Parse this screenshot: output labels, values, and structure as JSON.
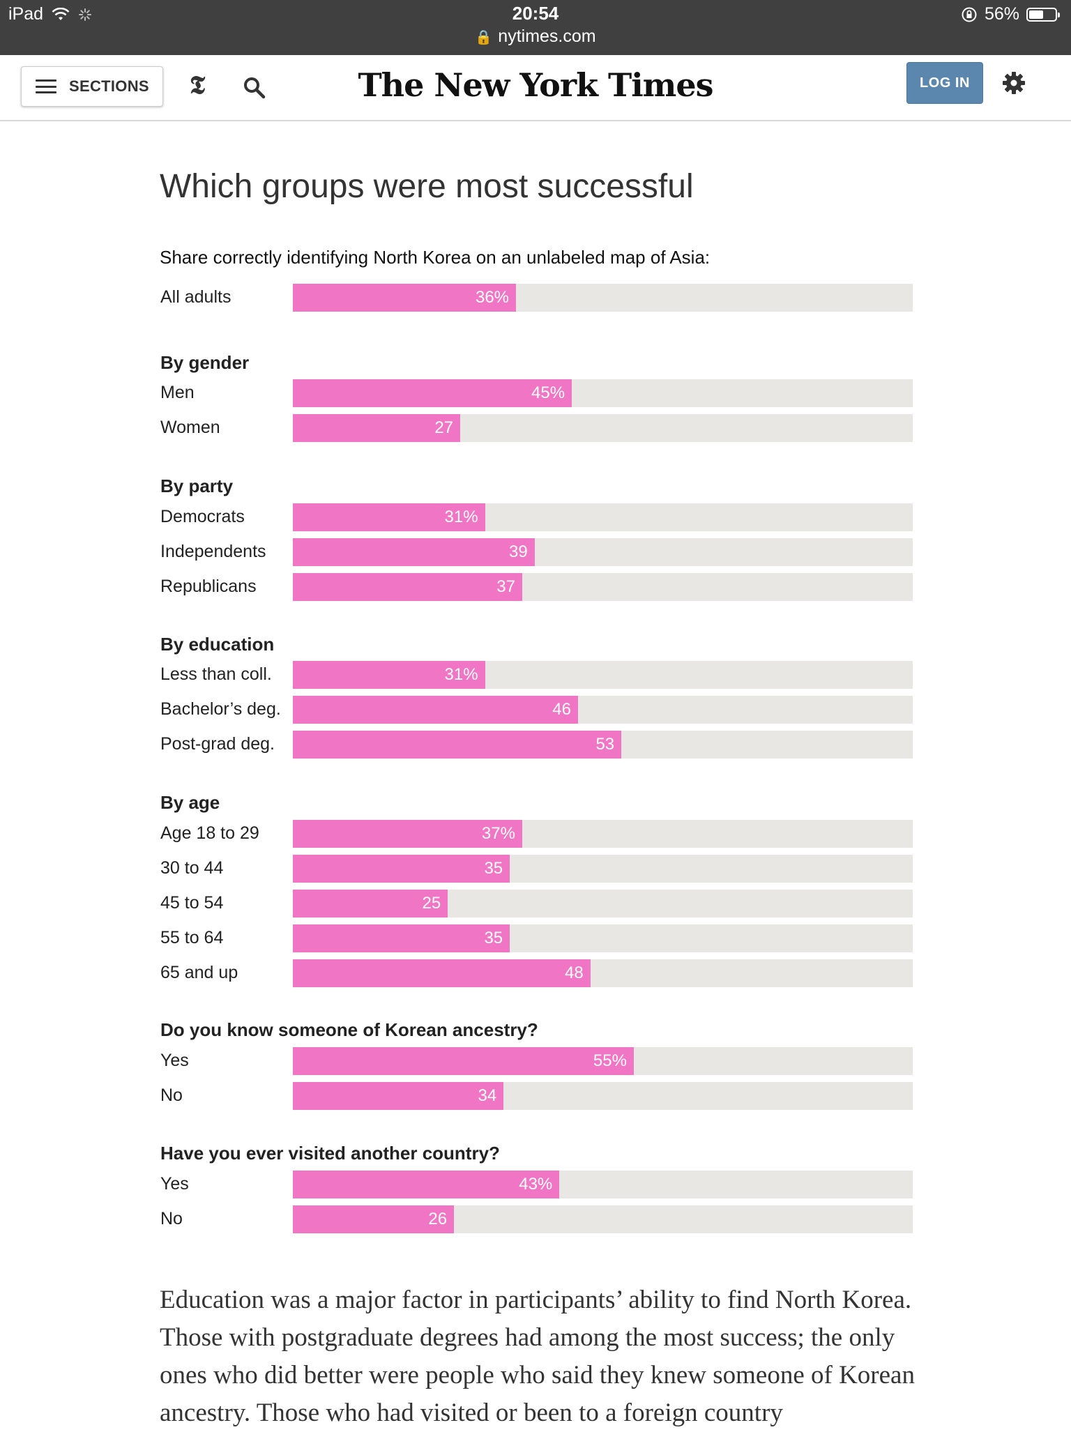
{
  "status_bar": {
    "device": "iPad",
    "time": "20:54",
    "battery_percent": "56%",
    "battery_level": 0.56
  },
  "url_bar": {
    "domain": "nytimes.com"
  },
  "header": {
    "sections_label": "SECTIONS",
    "t_logo": "𝕿",
    "masthead": "The New York Times",
    "login_label": "LOG IN"
  },
  "chart_data": {
    "type": "bar",
    "title": "Which groups were most successful",
    "subtitle": "Share correctly identifying North Korea on an unlabeled map of Asia:",
    "xlim": [
      0,
      100
    ],
    "groups": [
      {
        "heading": "",
        "rows": [
          {
            "label": "All adults",
            "value": 36,
            "value_label": "36%"
          }
        ]
      },
      {
        "heading": "By gender",
        "rows": [
          {
            "label": "Men",
            "value": 45,
            "value_label": "45%"
          },
          {
            "label": "Women",
            "value": 27,
            "value_label": "27"
          }
        ]
      },
      {
        "heading": "By party",
        "rows": [
          {
            "label": "Democrats",
            "value": 31,
            "value_label": "31%"
          },
          {
            "label": "Independents",
            "value": 39,
            "value_label": "39"
          },
          {
            "label": "Republicans",
            "value": 37,
            "value_label": "37"
          }
        ]
      },
      {
        "heading": "By education",
        "rows": [
          {
            "label": "Less than coll.",
            "value": 31,
            "value_label": "31%"
          },
          {
            "label": "Bachelor’s deg.",
            "value": 46,
            "value_label": "46"
          },
          {
            "label": "Post-grad deg.",
            "value": 53,
            "value_label": "53"
          }
        ]
      },
      {
        "heading": "By age",
        "rows": [
          {
            "label": "Age 18 to 29",
            "value": 37,
            "value_label": "37%"
          },
          {
            "label": "30 to 44",
            "value": 35,
            "value_label": "35"
          },
          {
            "label": "45 to 54",
            "value": 25,
            "value_label": "25"
          },
          {
            "label": "55 to 64",
            "value": 35,
            "value_label": "35"
          },
          {
            "label": "65 and up",
            "value": 48,
            "value_label": "48"
          }
        ]
      },
      {
        "heading": "Do you know someone of Korean ancestry?",
        "rows": [
          {
            "label": "Yes",
            "value": 55,
            "value_label": "55%"
          },
          {
            "label": "No",
            "value": 34,
            "value_label": "34"
          }
        ]
      },
      {
        "heading": "Have you ever visited another country?",
        "rows": [
          {
            "label": "Yes",
            "value": 43,
            "value_label": "43%"
          },
          {
            "label": "No",
            "value": 26,
            "value_label": "26"
          }
        ]
      }
    ],
    "colors": {
      "bar": "#f075c4",
      "track": "#e8e7e4"
    }
  },
  "article": {
    "paragraph": "Education was a major factor in participants’ ability to find North Korea. Those with postgraduate degrees had among the most success; the only ones who did better were people who said they knew someone of Korean ancestry. Those who had visited or been to a foreign country"
  }
}
